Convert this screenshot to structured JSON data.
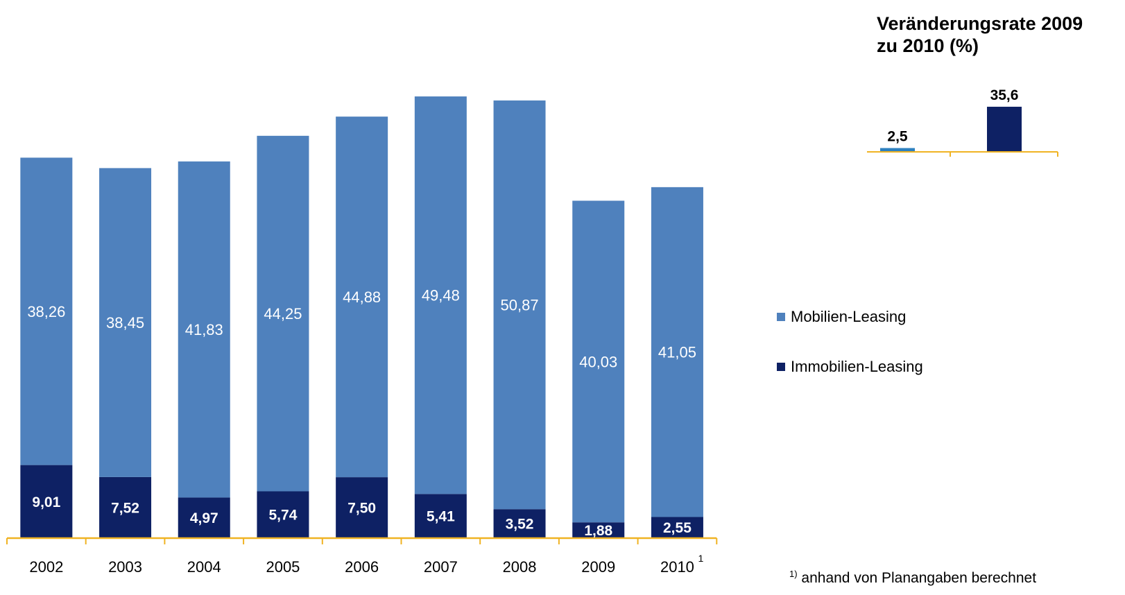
{
  "chart_data": [
    {
      "type": "bar",
      "stacked": true,
      "categories": [
        "2002",
        "2003",
        "2004",
        "2005",
        "2006",
        "2007",
        "2008",
        "2009",
        "2010"
      ],
      "category_footnote": {
        "index": 8,
        "mark": "1"
      },
      "series": [
        {
          "name": "Immobilien-Leasing",
          "color": "#0e2164",
          "values": [
            9.01,
            7.52,
            4.97,
            5.74,
            7.5,
            5.41,
            3.52,
            1.88,
            2.55
          ],
          "labels": [
            "9,01",
            "7,52",
            "4,97",
            "5,74",
            "7,50",
            "5,41",
            "3,52",
            "1,88",
            "2,55"
          ]
        },
        {
          "name": "Mobilien-Leasing",
          "color": "#4f81bd",
          "values": [
            38.26,
            38.45,
            41.83,
            44.25,
            44.88,
            49.48,
            50.87,
            40.03,
            41.05
          ],
          "labels": [
            "38,26",
            "38,45",
            "41,83",
            "44,25",
            "44,88",
            "49,48",
            "50,87",
            "40,03",
            "41,05"
          ]
        }
      ],
      "axis_color": "#f0b323",
      "ylim": [
        0,
        56
      ],
      "legend": {
        "placement": "right",
        "items": [
          {
            "label": "Mobilien-Leasing",
            "color": "#4f81bd"
          },
          {
            "label": "Immobilien-Leasing",
            "color": "#0e2164"
          }
        ]
      },
      "footnote": {
        "mark": "1)",
        "text": "anhand von Planangaben berechnet"
      }
    },
    {
      "type": "bar",
      "title": "Veränderungsrate 2009 zu 2010 (%)",
      "title_lines": [
        "Veränderungsrate 2009",
        "zu 2010 (%)"
      ],
      "series": [
        {
          "name": "Mobilien-Leasing",
          "color": "#2d80c0",
          "value": 2.5,
          "label": "2,5"
        },
        {
          "name": "Immobilien-Leasing",
          "color": "#0e2164",
          "value": 35.6,
          "label": "35,6"
        }
      ],
      "values": [
        2.5,
        35.6
      ],
      "ylim": [
        0,
        40
      ],
      "axis_color": "#f0b323"
    }
  ]
}
